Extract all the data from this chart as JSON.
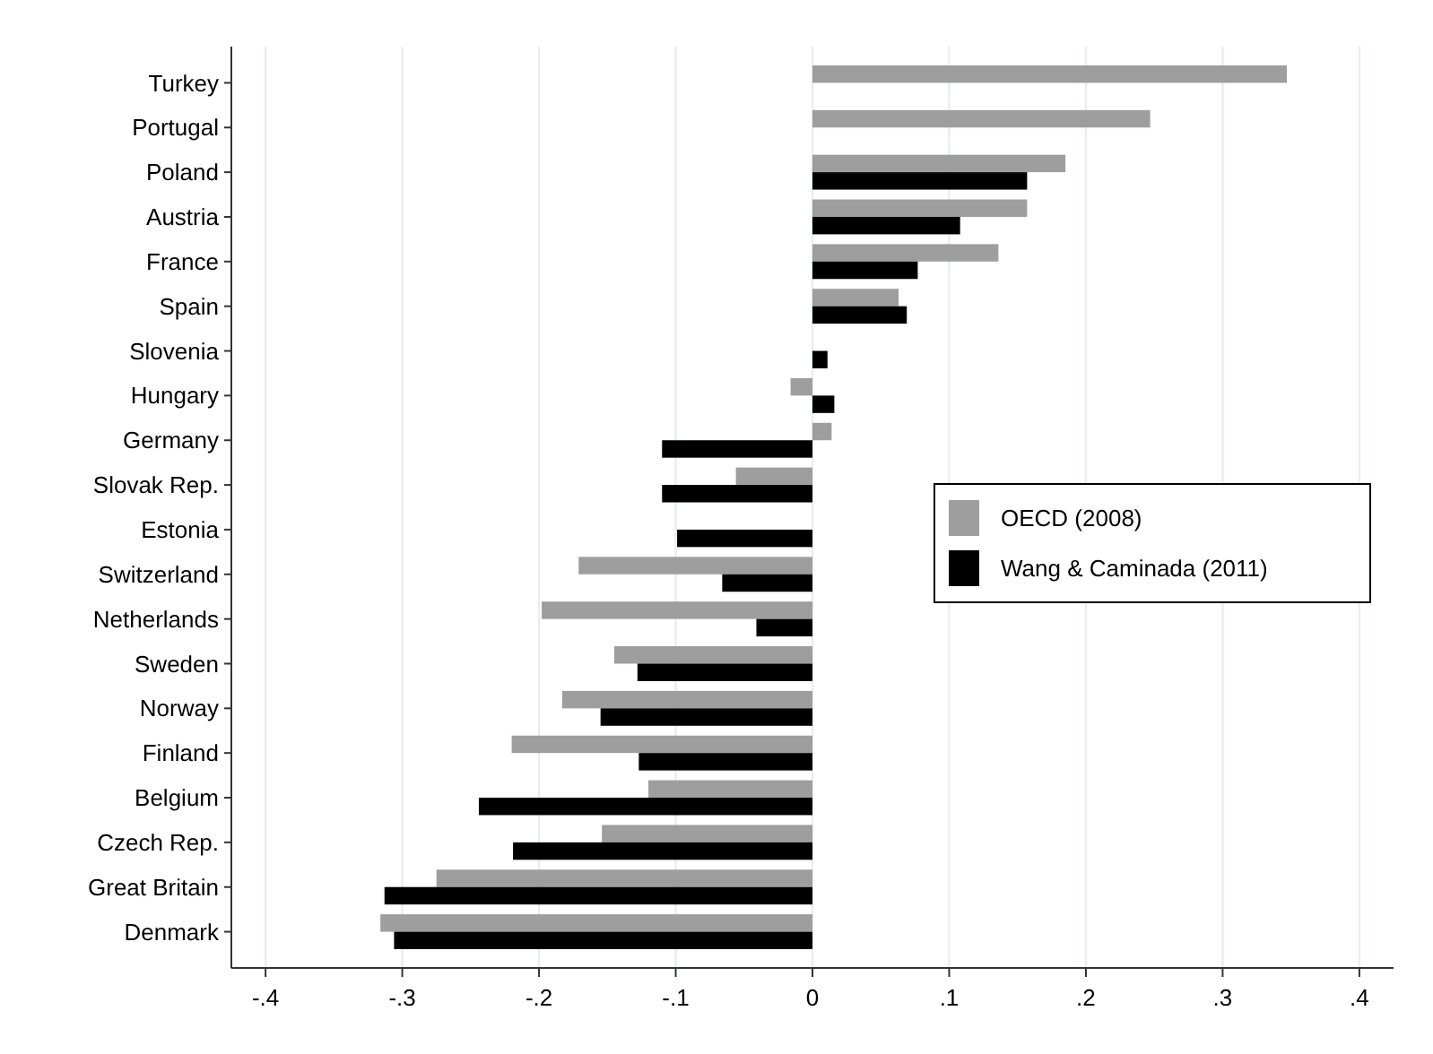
{
  "chart_data": {
    "type": "bar",
    "orientation": "horizontal",
    "categories": [
      "Turkey",
      "Portugal",
      "Poland",
      "Austria",
      "France",
      "Spain",
      "Slovenia",
      "Hungary",
      "Germany",
      "Slovak Rep.",
      "Estonia",
      "Switzerland",
      "Netherlands",
      "Sweden",
      "Norway",
      "Finland",
      "Belgium",
      "Czech Rep.",
      "Great Britain",
      "Denmark"
    ],
    "series": [
      {
        "name": "OECD (2008)",
        "color": "#9e9e9e",
        "values": [
          0.347,
          0.247,
          0.185,
          0.157,
          0.136,
          0.063,
          null,
          -0.016,
          0.014,
          -0.056,
          null,
          -0.171,
          -0.198,
          -0.145,
          -0.183,
          -0.22,
          -0.12,
          -0.154,
          -0.275,
          -0.316
        ]
      },
      {
        "name": "Wang & Caminada (2011)",
        "color": "#000000",
        "values": [
          null,
          null,
          0.157,
          0.108,
          0.077,
          0.069,
          0.011,
          0.016,
          -0.11,
          -0.11,
          -0.099,
          -0.066,
          -0.041,
          -0.128,
          -0.155,
          -0.127,
          -0.244,
          -0.219,
          -0.313,
          -0.306
        ]
      }
    ],
    "xlim": [
      -0.425,
      0.425
    ],
    "xticks": [
      {
        "value": -0.4,
        "label": "-.4"
      },
      {
        "value": -0.3,
        "label": "-.3"
      },
      {
        "value": -0.2,
        "label": "-.2"
      },
      {
        "value": -0.1,
        "label": "-.1"
      },
      0,
      {
        "value": 0.1,
        "label": ".1"
      },
      {
        "value": 0.2,
        "label": ".2"
      },
      {
        "value": 0.3,
        "label": ".3"
      },
      {
        "value": 0.4,
        "label": ".4"
      }
    ],
    "grid": "x",
    "legend": "right"
  }
}
